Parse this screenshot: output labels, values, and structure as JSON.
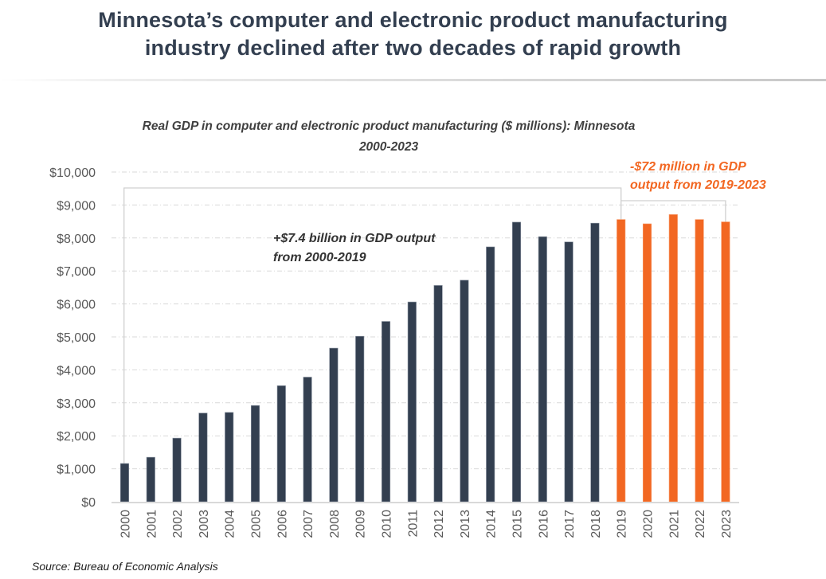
{
  "headline": {
    "line1": "Minnesota’s computer and electronic product manufacturing",
    "line2": "industry declined after two decades of rapid growth"
  },
  "source": "Source: Bureau of Economic Analysis",
  "colors": {
    "headline": "#333f50",
    "bar_growth": "#333f50",
    "bar_decline": "#f26722",
    "annotation_growth": "#333333",
    "annotation_decline": "#f26722",
    "gridline": "#d9d9d9",
    "bracket": "#d0d0d0",
    "tick_label": "#595959"
  },
  "chart_data": {
    "type": "bar",
    "title": "Real GDP in computer and electronic product manufacturing ($ millions): Minnesota",
    "subtitle": "2000-2023",
    "xlabel": "",
    "ylabel": "",
    "ylim": [
      0,
      10000
    ],
    "yticks": [
      0,
      1000,
      2000,
      3000,
      4000,
      5000,
      6000,
      7000,
      8000,
      9000,
      10000
    ],
    "ytick_labels": [
      "$0",
      "$1,000",
      "$2,000",
      "$3,000",
      "$4,000",
      "$5,000",
      "$6,000",
      "$7,000",
      "$8,000",
      "$9,000",
      "$10,000"
    ],
    "grid": true,
    "legend": "none",
    "categories": [
      "2000",
      "2001",
      "2002",
      "2003",
      "2004",
      "2005",
      "2006",
      "2007",
      "2008",
      "2009",
      "2010",
      "2011",
      "2012",
      "2013",
      "2014",
      "2015",
      "2016",
      "2017",
      "2018",
      "2019",
      "2020",
      "2021",
      "2022",
      "2023"
    ],
    "values": [
      1160,
      1350,
      1930,
      2690,
      2710,
      2920,
      3520,
      3780,
      4660,
      5020,
      5470,
      6060,
      6560,
      6720,
      7730,
      8480,
      8040,
      7880,
      8450,
      8560,
      8430,
      8710,
      8560,
      8488
    ],
    "highlight_from_index": 19,
    "annotations": [
      {
        "text_lines": [
          "+$7.4 billion in GDP output",
          "from 2000-2019"
        ],
        "span": [
          "2000",
          "2019"
        ],
        "style": "growth"
      },
      {
        "text_lines": [
          "-$72 million in GDP",
          "output from 2019-2023"
        ],
        "span": [
          "2019",
          "2023"
        ],
        "style": "decline"
      }
    ]
  }
}
